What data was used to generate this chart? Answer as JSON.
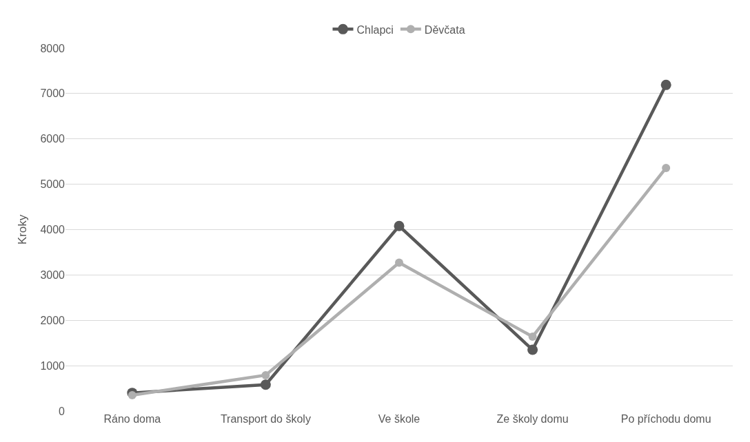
{
  "chart_data": {
    "type": "line",
    "ylabel": "Kroky",
    "categories": [
      "Ráno doma",
      "Transport do školy",
      "Ve škole",
      "Ze školy domu",
      "Po příchodu domu"
    ],
    "series": [
      {
        "name": "Chlapci",
        "color": "#595959",
        "values": [
          400,
          580,
          4080,
          1350,
          7190
        ]
      },
      {
        "name": "Děvčata",
        "color": "#afafaf",
        "values": [
          350,
          790,
          3270,
          1640,
          5360
        ]
      }
    ],
    "ylim": [
      0,
      8000
    ],
    "yticks": [
      0,
      1000,
      2000,
      3000,
      4000,
      5000,
      6000,
      7000,
      8000
    ],
    "grid": "y",
    "legend": "top",
    "marker": "circle",
    "line_style": "solid"
  }
}
